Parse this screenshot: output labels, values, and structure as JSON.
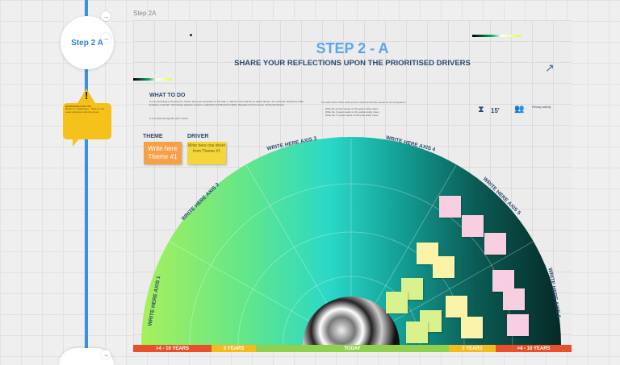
{
  "frame_label": "Step 2A",
  "timeline": {
    "step_label": "Step 2 A",
    "warning": {
      "title": "QUESTIONS FOR YOU",
      "text": "Reflect on challenges... Write on the notes and share with the group."
    },
    "arrow": "→"
  },
  "header": {
    "title": "STEP 2 - A",
    "subtitle": "SHARE YOUR REFLECTIONS UPON THE PRIORITISED DRIVERS"
  },
  "instructions": {
    "heading": "WHAT TO DO",
    "left_text": "2-A-1) According to the themes, drivers and your ecosystem of the Step 1, define 6 axes that let us reflect deeper. For example: Workforce skills, Enablers of growth, Technology adoption support, Leadership and Business Skills, Regulatory Environment, Financial Support.",
    "left_text2": "2-A-2) Start all together with 1 driver.",
    "right_text": "For each driver think: what are the current and future needs of our ecosystem?",
    "bullets": [
      "Write the current needs on the green sticky notes",
      "Write the 3 years needs on the yellow sticky notes",
      "Write the >4 years needs on the pink sticky notes"
    ],
    "time": "15'",
    "activity": "Plenary activity"
  },
  "theme": {
    "label": "THEME",
    "note": "Write here Theme #1"
  },
  "driver": {
    "label": "DRIVER",
    "note": "Write here one driver from Theme #1"
  },
  "axes": [
    "WRITE HERE AXIS 1",
    "WRITE HERE AXIS 2",
    "WRITE HERE AXIS 3",
    "WRITE HERE AXIS 4",
    "WRITE HERE AXIS 5",
    "WRITE HERE AXIS 6"
  ],
  "timeline_bar": [
    ">4 - 10 YEARS",
    "3 YEARS",
    "TODAY",
    "3 YEARS",
    ">4 - 10 YEARS"
  ],
  "colors": {
    "accent": "#3d8fe0",
    "title": "#5ba4ef",
    "red": "#e8502a",
    "yellow": "#f3bb1c",
    "green": "#8fd14f",
    "pink": "#f7cfe0",
    "note_yellow": "#fbf4a8",
    "note_green": "#d9f28e"
  }
}
